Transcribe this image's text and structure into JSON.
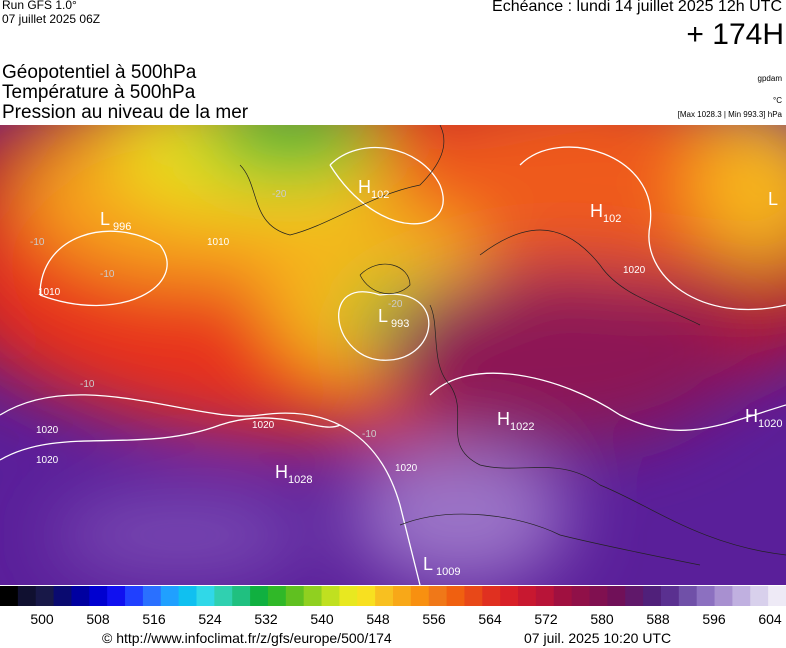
{
  "header": {
    "run": "Run GFS 1.0°",
    "run_date": "07 juillet 2025 06Z",
    "valid": "Echéance : lundi 14 juillet 2025 12h UTC",
    "lead": "+ 174H",
    "fields": [
      "Géopotentiel à 500hPa",
      "Température à 500hPa",
      "Pression au niveau de la mer"
    ],
    "units": [
      "gpdam",
      "°C",
      "[Max 1028.3 | Min 993.3] hPa"
    ]
  },
  "centers": [
    {
      "kind": "L",
      "value": "996"
    },
    {
      "kind": "H",
      "value": "102"
    },
    {
      "kind": "L",
      "value": "993"
    },
    {
      "kind": "H",
      "value": "102"
    },
    {
      "kind": "H",
      "value": "1022"
    },
    {
      "kind": "H",
      "value": "1028"
    },
    {
      "kind": "H",
      "value": "1020"
    },
    {
      "kind": "L",
      "value": "1009"
    },
    {
      "kind": "L",
      "value": ""
    }
  ],
  "contour_labels": [
    "1010",
    "1010",
    "1020",
    "1020",
    "1020",
    "1020",
    "1020",
    "-10",
    "-10",
    "-20",
    "-20",
    "-10",
    "-10"
  ],
  "colorbar": {
    "ticks": [
      500,
      508,
      516,
      524,
      532,
      540,
      548,
      556,
      564,
      572,
      580,
      588,
      596,
      604
    ]
  },
  "footer": {
    "source": "© http://www.infoclimat.fr/z/gfs/europe/500/174",
    "generated": "07 juil. 2025 10:20 UTC"
  }
}
